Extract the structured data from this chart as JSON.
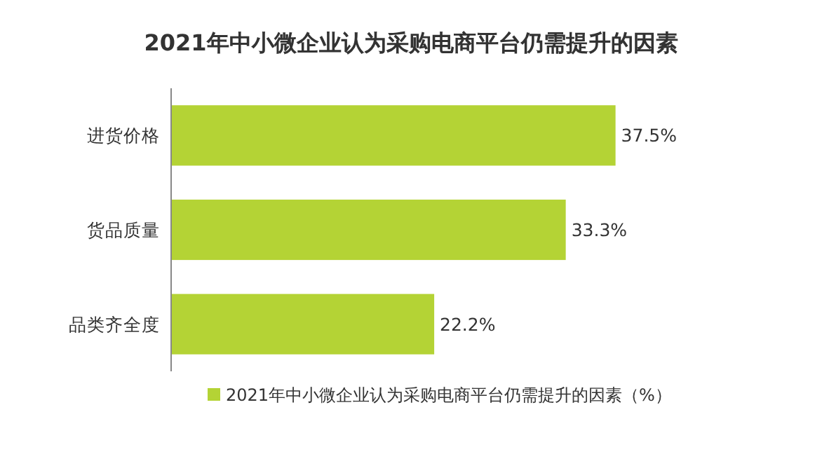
{
  "chart_data": {
    "type": "bar",
    "orientation": "horizontal",
    "title": "2021年中小微企业认为采购电商平台仍需提升的因素",
    "categories": [
      "进货价格",
      "货品质量",
      "品类齐全度"
    ],
    "series": [
      {
        "name": "2021年中小微企业认为采购电商平台仍需提升的因素（%）",
        "color": "#b4d335",
        "values": [
          37.5,
          33.3,
          22.2
        ],
        "value_labels": [
          "37.5%",
          "33.3%",
          "22.2%"
        ]
      }
    ],
    "legend": "bottom"
  }
}
